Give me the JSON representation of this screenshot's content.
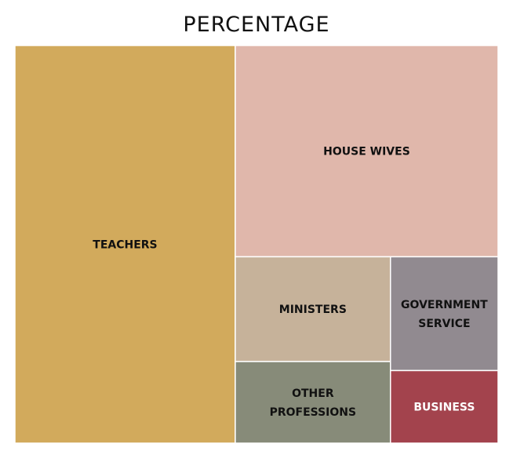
{
  "chart_data": {
    "type": "treemap",
    "title": "PERCENTAGE",
    "tiles": [
      {
        "label": "TEACHERS",
        "lines": [
          "TEACHERS"
        ],
        "value": 41.5,
        "color": "#d2aa5c",
        "text_color": "#111111"
      },
      {
        "label": "HOUSE WIVES",
        "lines": [
          "HOUSE WIVES"
        ],
        "value": 26.3,
        "color": "#e0b7ab",
        "text_color": "#111111"
      },
      {
        "label": "MINISTERS",
        "lines": [
          "MINISTERS"
        ],
        "value": 7.7,
        "color": "#c6b29a",
        "text_color": "#111111"
      },
      {
        "label": "OTHER PROFESSIONS",
        "lines": [
          "OTHER",
          "PROFESSIONS"
        ],
        "value": 6.0,
        "color": "#878b79",
        "text_color": "#111111"
      },
      {
        "label": "GOVERNMENT SERVICE",
        "lines": [
          "GOVERNMENT",
          "SERVICE"
        ],
        "value": 5.8,
        "color": "#918a90",
        "text_color": "#111111"
      },
      {
        "label": "BUSINESS",
        "lines": [
          "BUSINESS"
        ],
        "value": 3.7,
        "color": "#a3434d",
        "text_color": "#ffffff"
      }
    ]
  }
}
